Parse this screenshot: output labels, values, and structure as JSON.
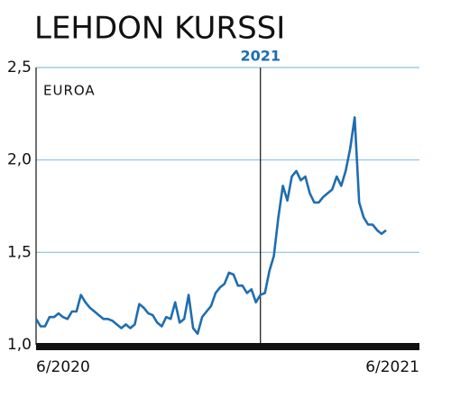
{
  "chart_data": {
    "type": "line",
    "title": "LEHDON KURSSI",
    "y_unit": "EUROA",
    "categories": [
      "6/2020",
      null,
      null,
      null,
      null,
      null,
      null,
      null,
      null,
      null,
      null,
      null,
      null,
      null,
      null,
      null,
      null,
      null,
      null,
      null,
      null,
      null,
      null,
      null,
      null,
      null,
      null,
      null,
      null,
      null,
      null,
      null,
      null,
      null,
      null,
      null,
      null,
      null,
      null,
      null,
      null,
      null,
      null,
      null,
      null,
      null,
      null,
      null,
      null,
      null,
      "2021",
      null,
      null,
      null,
      null,
      null,
      null,
      null,
      null,
      null,
      null,
      null,
      null,
      null,
      null,
      null,
      null,
      null,
      null,
      null,
      null,
      null,
      null,
      null,
      null,
      null,
      null,
      null,
      "6/2021"
    ],
    "values": [
      1.14,
      1.1,
      1.1,
      1.15,
      1.15,
      1.17,
      1.15,
      1.14,
      1.18,
      1.18,
      1.27,
      1.23,
      1.2,
      1.18,
      1.16,
      1.14,
      1.14,
      1.13,
      1.11,
      1.09,
      1.11,
      1.09,
      1.11,
      1.22,
      1.2,
      1.17,
      1.16,
      1.12,
      1.1,
      1.15,
      1.14,
      1.23,
      1.12,
      1.14,
      1.27,
      1.09,
      1.06,
      1.15,
      1.18,
      1.21,
      1.28,
      1.31,
      1.33,
      1.39,
      1.38,
      1.32,
      1.32,
      1.28,
      1.3,
      1.23,
      1.27,
      1.28,
      1.4,
      1.48,
      1.69,
      1.86,
      1.78,
      1.91,
      1.94,
      1.89,
      1.91,
      1.82,
      1.77,
      1.77,
      1.8,
      1.82,
      1.84,
      1.91,
      1.86,
      1.94,
      2.06,
      2.23,
      1.77,
      1.69,
      1.65,
      1.65,
      1.62,
      1.6,
      1.62
    ],
    "color": "#1f6db0",
    "ylim": [
      1.0,
      2.5
    ],
    "yticks": [
      {
        "value": 1.0,
        "label": "1,0"
      },
      {
        "value": 1.5,
        "label": "1,5"
      },
      {
        "value": 2.0,
        "label": "2,0"
      },
      {
        "value": 2.5,
        "label": "2,5"
      }
    ],
    "grid": true
  }
}
